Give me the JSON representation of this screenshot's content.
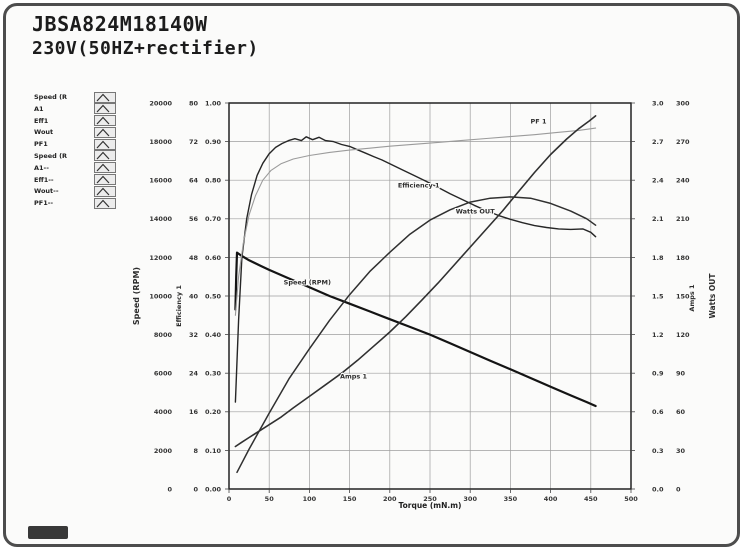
{
  "header": {
    "model": "JBSA824M18140W",
    "condition": "230V(50HZ+rectifier)"
  },
  "legend": {
    "items": [
      {
        "label": "Speed (R"
      },
      {
        "label": "A1"
      },
      {
        "label": "Eff1"
      },
      {
        "label": "Wout"
      },
      {
        "label": "PF1"
      },
      {
        "label": "Speed (R"
      },
      {
        "label": "A1--"
      },
      {
        "label": "Eff1--"
      },
      {
        "label": "Wout--"
      },
      {
        "label": "PF1--"
      }
    ]
  },
  "chart_data": {
    "type": "line",
    "title": "",
    "xlabel": "Torque (mN.m)",
    "xlim": [
      0,
      500
    ],
    "grid": true,
    "x_tick_labels": [
      "0",
      "50",
      "100",
      "150",
      "200",
      "250",
      "300",
      "350",
      "400",
      "450",
      "500"
    ],
    "axes": {
      "rpm": {
        "title": "Speed (RPM)",
        "side": "left",
        "min": 0,
        "max": 20000,
        "tick_labels": [
          "0",
          "2000",
          "4000",
          "6000",
          "8000",
          "10000",
          "12000",
          "14000",
          "16000",
          "18000",
          "20000"
        ]
      },
      "eff": {
        "title": "Efficiency 1",
        "side": "left",
        "min": 0,
        "max": 80,
        "tick_labels": [
          "0",
          "8",
          "16",
          "24",
          "32",
          "40",
          "48",
          "56",
          "64",
          "72",
          "80"
        ]
      },
      "pf": {
        "title": "PF 1",
        "side": "left",
        "min": 0,
        "max": 1,
        "tick_labels": [
          "0.00",
          "0.10",
          "0.20",
          "0.30",
          "0.40",
          "0.50",
          "0.60",
          "0.70",
          "0.80",
          "0.90",
          "1.00"
        ]
      },
      "amps": {
        "title": "Amps 1",
        "side": "right",
        "min": 0,
        "max": 3,
        "tick_labels": [
          "0.0",
          "0.3",
          "0.6",
          "0.9",
          "1.2",
          "1.5",
          "1.8",
          "2.1",
          "2.4",
          "2.7",
          "3.0"
        ]
      },
      "watts": {
        "title": "Watts OUT",
        "side": "right",
        "min": 0,
        "max": 300,
        "tick_labels": [
          "0",
          "30",
          "60",
          "90",
          "120",
          "150",
          "180",
          "210",
          "240",
          "270",
          "300"
        ]
      }
    },
    "series": [
      {
        "name": "Speed (RPM)",
        "axis": "rpm",
        "color": "#141414",
        "width": 2.2,
        "x": [
          8,
          9,
          10,
          15,
          25,
          40,
          50,
          75,
          100,
          125,
          150,
          175,
          200,
          225,
          250,
          275,
          300,
          325,
          350,
          375,
          400,
          425,
          445,
          456
        ],
        "y": [
          9300,
          11000,
          12250,
          12100,
          11850,
          11550,
          11350,
          10900,
          10450,
          10000,
          9600,
          9200,
          8800,
          8400,
          8000,
          7550,
          7100,
          6650,
          6200,
          5750,
          5300,
          4850,
          4500,
          4300
        ]
      },
      {
        "name": "Efficiency 1",
        "axis": "eff",
        "color": "#262626",
        "width": 1.4,
        "x": [
          8,
          12,
          16,
          22,
          28,
          35,
          42,
          50,
          58,
          66,
          74,
          82,
          90,
          96,
          104,
          112,
          120,
          130,
          140,
          150,
          160,
          170,
          180,
          190,
          200,
          215,
          230,
          245,
          260,
          275,
          290,
          305,
          320,
          335,
          350,
          365,
          380,
          395,
          410,
          425,
          440,
          450,
          456
        ],
        "y": [
          18,
          35,
          48,
          56,
          61,
          65,
          67.5,
          69.5,
          70.8,
          71.6,
          72.2,
          72.6,
          72.2,
          73,
          72.4,
          72.9,
          72.2,
          72,
          71.4,
          71,
          70.3,
          69.6,
          68.9,
          68.2,
          67.4,
          66.2,
          65,
          63.8,
          62.5,
          61.2,
          60,
          58.8,
          57.7,
          56.7,
          55.9,
          55.2,
          54.6,
          54.2,
          53.9,
          53.8,
          53.9,
          53.2,
          52.3
        ]
      },
      {
        "name": "PF 1",
        "axis": "pf",
        "color": "#9b9b9b",
        "width": 1.1,
        "x": [
          8,
          12,
          18,
          25,
          33,
          42,
          52,
          65,
          80,
          100,
          125,
          150,
          175,
          200,
          230,
          260,
          290,
          320,
          350,
          380,
          410,
          435,
          456
        ],
        "y": [
          0.45,
          0.55,
          0.64,
          0.71,
          0.76,
          0.8,
          0.825,
          0.843,
          0.855,
          0.864,
          0.872,
          0.878,
          0.883,
          0.888,
          0.893,
          0.898,
          0.903,
          0.908,
          0.913,
          0.918,
          0.924,
          0.929,
          0.935
        ]
      },
      {
        "name": "Amps 1",
        "axis": "amps",
        "color": "#303030",
        "width": 1.6,
        "x": [
          8,
          15,
          25,
          40,
          50,
          65,
          80,
          100,
          120,
          140,
          160,
          180,
          200,
          220,
          240,
          260,
          280,
          300,
          320,
          340,
          360,
          380,
          400,
          420,
          435,
          448,
          456
        ],
        "y": [
          0.33,
          0.36,
          0.4,
          0.46,
          0.5,
          0.56,
          0.63,
          0.72,
          0.81,
          0.9,
          1.0,
          1.11,
          1.22,
          1.34,
          1.47,
          1.6,
          1.74,
          1.88,
          2.02,
          2.16,
          2.31,
          2.46,
          2.6,
          2.72,
          2.8,
          2.86,
          2.9
        ]
      },
      {
        "name": "Watts OUT",
        "axis": "watts",
        "color": "#303030",
        "width": 1.5,
        "x": [
          10,
          25,
          50,
          75,
          100,
          125,
          150,
          175,
          200,
          225,
          250,
          275,
          300,
          325,
          350,
          375,
          400,
          425,
          445,
          456
        ],
        "y": [
          13,
          31,
          59,
          86,
          109,
          131,
          151,
          169,
          184,
          198,
          209,
          217,
          223,
          226,
          227,
          226,
          222,
          216,
          210,
          205
        ]
      }
    ],
    "annotations": [
      {
        "text": "Speed (RPM)",
        "axis": "rpm",
        "x": 68,
        "y": 10600
      },
      {
        "text": "Efficiency 1",
        "axis": "eff",
        "x": 210,
        "y": 62.5
      },
      {
        "text": "Watts OUT",
        "axis": "watts",
        "x": 282,
        "y": 214
      },
      {
        "text": "Amps 1",
        "axis": "amps",
        "x": 138,
        "y": 0.86
      },
      {
        "text": "PF 1",
        "axis": "pf",
        "x": 375,
        "y": 0.947
      }
    ]
  }
}
